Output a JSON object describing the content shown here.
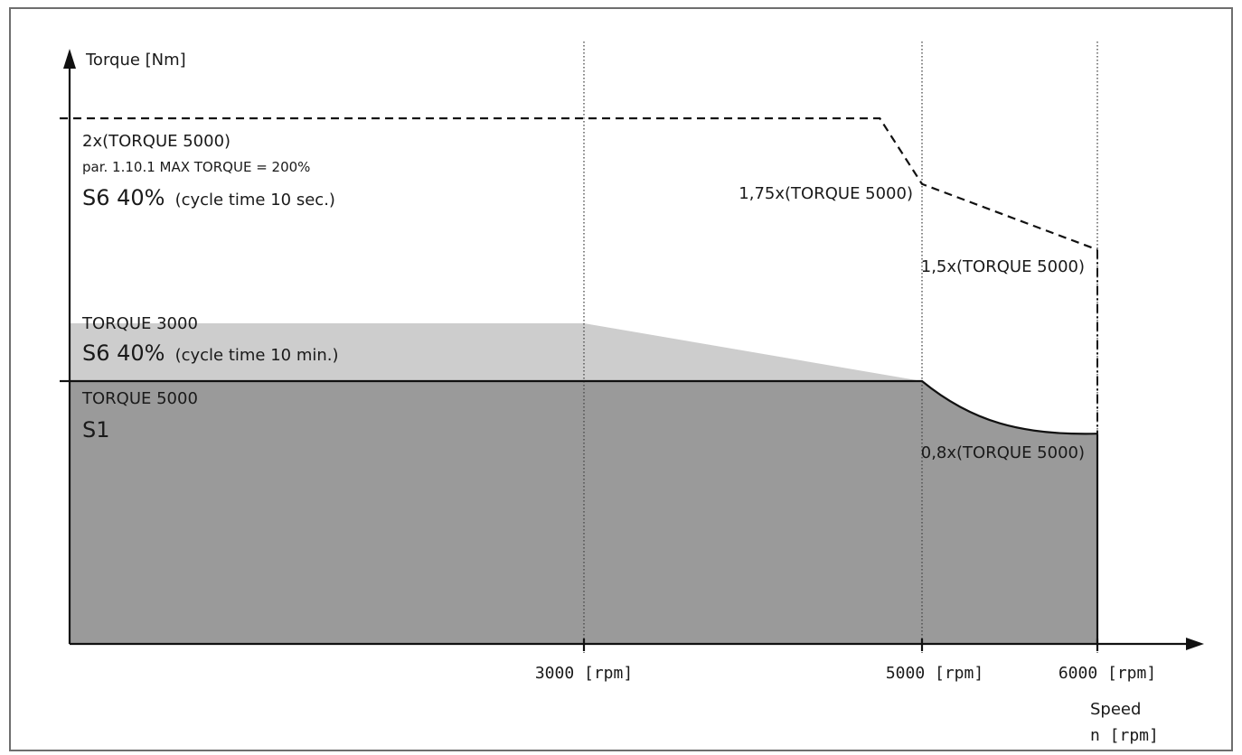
{
  "chart_data": {
    "type": "area",
    "xlabel": "Speed\nn [rpm]",
    "xlabel_lines": [
      "Speed",
      "n [rpm]"
    ],
    "ylabel": "Torque [Nm]",
    "x_ticks": [
      "3000 [rpm]",
      "5000 [rpm]",
      "6000 [rpm]"
    ],
    "x_tick_values": [
      3000,
      5000,
      6000
    ],
    "y_unit": "× TORQUE 5000",
    "series": [
      {
        "name": "TORQUE 5000 S1",
        "style": "filled-dark",
        "color": "#9a9a9a",
        "x": [
          0,
          5000,
          5250,
          5500,
          5750,
          6000
        ],
        "y": [
          1.0,
          1.0,
          0.9,
          0.84,
          0.81,
          0.8
        ]
      },
      {
        "name": "TORQUE 3000 S6 40% (cycle time 10 min.)",
        "style": "filled-light",
        "color": "#cdcdcd",
        "x": [
          0,
          3000,
          5000
        ],
        "y": [
          1.22,
          1.22,
          1.0
        ]
      },
      {
        "name": "2x(TORQUE 5000) S6 40% (cycle time 10 sec.)",
        "style": "dashed",
        "color": "#1a1a1a",
        "x": [
          0,
          4750,
          5000,
          6000
        ],
        "y": [
          2.0,
          2.0,
          1.75,
          1.5
        ]
      }
    ],
    "annotations": {
      "max_torque_title": "2x(TORQUE 5000)",
      "max_torque_param": "par. 1.10.1 MAX TORQUE = 200%",
      "s6_sec_main": "S6 40%",
      "s6_sec_sub": "(cycle time 10 sec.)",
      "torque3000_title": "TORQUE 3000",
      "s6_min_main": "S6 40%",
      "s6_min_sub": "(cycle time 10 min.)",
      "torque5000_title": "TORQUE 5000",
      "s1": "S1",
      "at5000_dashed": "1,75x(TORQUE 5000)",
      "at6000_dashed": "1,5x(TORQUE 5000)",
      "at6000_solid": "0,8x(TORQUE 5000)"
    },
    "xlim": [
      0,
      6000
    ],
    "ylim": [
      0,
      2.0
    ],
    "grid": "vertical dotted at 3000, 5000, 6000"
  }
}
